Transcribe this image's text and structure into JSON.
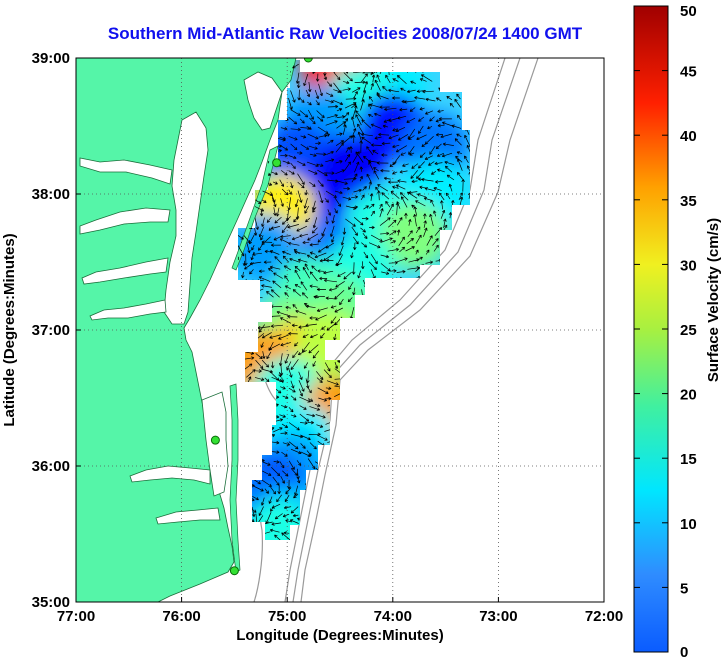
{
  "chart_data": {
    "type": "heatmap",
    "title": "Southern Mid-Atlantic Raw Velocities 2008/07/24 1400 GMT",
    "xlabel": "Longitude (Degrees:Minutes)",
    "ylabel": "Latitude (Degrees:Minutes)",
    "xlim": [
      -77,
      -72
    ],
    "ylim": [
      35,
      39
    ],
    "x_ticks": [
      {
        "value": -77,
        "label": "77:00"
      },
      {
        "value": -76,
        "label": "76:00"
      },
      {
        "value": -75,
        "label": "75:00"
      },
      {
        "value": -74,
        "label": "74:00"
      },
      {
        "value": -73,
        "label": "73:00"
      },
      {
        "value": -72,
        "label": "72:00"
      }
    ],
    "y_ticks": [
      {
        "value": 35,
        "label": "35:00"
      },
      {
        "value": 36,
        "label": "36:00"
      },
      {
        "value": 37,
        "label": "37:00"
      },
      {
        "value": 38,
        "label": "38:00"
      },
      {
        "value": 39,
        "label": "39:00"
      }
    ],
    "grid": true,
    "colorbar": {
      "label": "Surface Velocity (cm/s)",
      "range": [
        0,
        50
      ],
      "ticks": [
        "0",
        "5",
        "10",
        "15",
        "20",
        "25",
        "30",
        "35",
        "40",
        "45",
        "50"
      ],
      "colormap": "jet"
    },
    "land_color": "#55f5a8",
    "title_color": "#1010ee",
    "stations": [
      {
        "lon": -74.8,
        "lat": 39.0
      },
      {
        "lon": -75.1,
        "lat": 38.23
      },
      {
        "lon": -75.68,
        "lat": 36.19
      },
      {
        "lon": -75.5,
        "lat": 35.23
      }
    ],
    "velocity_field": [
      {
        "lon": -74.55,
        "lat": 38.9,
        "speed": 42
      },
      {
        "lon": -74.0,
        "lat": 38.8,
        "speed": 18
      },
      {
        "lon": -74.3,
        "lat": 38.7,
        "speed": 20
      },
      {
        "lon": -74.7,
        "lat": 38.55,
        "speed": 14
      },
      {
        "lon": -74.0,
        "lat": 38.5,
        "speed": 7
      },
      {
        "lon": -73.6,
        "lat": 38.35,
        "speed": 12
      },
      {
        "lon": -74.9,
        "lat": 38.3,
        "speed": 10
      },
      {
        "lon": -74.4,
        "lat": 38.2,
        "speed": 6
      },
      {
        "lon": -73.6,
        "lat": 38.0,
        "speed": 18
      },
      {
        "lon": -74.75,
        "lat": 37.95,
        "speed": 6
      },
      {
        "lon": -75.05,
        "lat": 37.9,
        "speed": 32
      },
      {
        "lon": -74.1,
        "lat": 37.8,
        "speed": 20
      },
      {
        "lon": -73.8,
        "lat": 37.7,
        "speed": 25
      },
      {
        "lon": -75.2,
        "lat": 37.6,
        "speed": 14
      },
      {
        "lon": -74.6,
        "lat": 37.55,
        "speed": 12
      },
      {
        "lon": -74.3,
        "lat": 37.45,
        "speed": 20
      },
      {
        "lon": -74.8,
        "lat": 37.3,
        "speed": 22
      },
      {
        "lon": -74.5,
        "lat": 37.15,
        "speed": 24
      },
      {
        "lon": -75.0,
        "lat": 37.0,
        "speed": 25
      },
      {
        "lon": -74.85,
        "lat": 36.85,
        "speed": 34
      },
      {
        "lon": -75.25,
        "lat": 36.75,
        "speed": 36
      },
      {
        "lon": -74.6,
        "lat": 36.9,
        "speed": 28
      },
      {
        "lon": -75.0,
        "lat": 36.55,
        "speed": 20
      },
      {
        "lon": -74.55,
        "lat": 36.4,
        "speed": 36
      },
      {
        "lon": -74.85,
        "lat": 36.2,
        "speed": 18
      },
      {
        "lon": -74.95,
        "lat": 36.0,
        "speed": 14
      },
      {
        "lon": -75.15,
        "lat": 35.85,
        "speed": 10
      },
      {
        "lon": -75.25,
        "lat": 35.7,
        "speed": 12
      },
      {
        "lon": -74.95,
        "lat": 35.6,
        "speed": 16
      },
      {
        "lon": -75.1,
        "lat": 35.5,
        "speed": 20
      }
    ]
  }
}
